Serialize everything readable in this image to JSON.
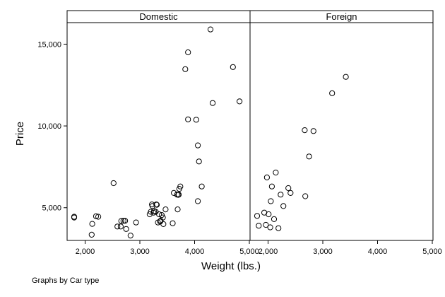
{
  "chart_data": {
    "type": "scatter",
    "ylabel": "Price",
    "xlabel": "Weight (lbs.)",
    "note": "Graphs by Car type",
    "xlim": [
      1800,
      5000
    ],
    "ylim": [
      3000,
      16200
    ],
    "xticks": [
      2000,
      3000,
      4000,
      5000
    ],
    "xtick_labels": [
      "2,000",
      "3,000",
      "4,000",
      "5,000"
    ],
    "yticks": [
      5000,
      10000,
      15000
    ],
    "ytick_labels": [
      "5,000",
      "10,000",
      "15,000"
    ],
    "grid": false,
    "marker": "hollow-circle",
    "panels": [
      {
        "name": "Domestic",
        "points": [
          [
            1800,
            4400
          ],
          [
            1800,
            4450
          ],
          [
            2120,
            3350
          ],
          [
            2130,
            4010
          ],
          [
            2200,
            4480
          ],
          [
            2240,
            4450
          ],
          [
            2520,
            6500
          ],
          [
            2590,
            3850
          ],
          [
            2650,
            3850
          ],
          [
            2660,
            4190
          ],
          [
            2700,
            4200
          ],
          [
            2730,
            4200
          ],
          [
            2750,
            3700
          ],
          [
            2830,
            3300
          ],
          [
            2930,
            4100
          ],
          [
            3180,
            4600
          ],
          [
            3200,
            4750
          ],
          [
            3220,
            5200
          ],
          [
            3230,
            5100
          ],
          [
            3250,
            4700
          ],
          [
            3260,
            4800
          ],
          [
            3290,
            4750
          ],
          [
            3300,
            5200
          ],
          [
            3310,
            5180
          ],
          [
            3330,
            4100
          ],
          [
            3350,
            4600
          ],
          [
            3370,
            4150
          ],
          [
            3380,
            4200
          ],
          [
            3400,
            4550
          ],
          [
            3420,
            4400
          ],
          [
            3430,
            4000
          ],
          [
            3470,
            4900
          ],
          [
            3600,
            4050
          ],
          [
            3620,
            5900
          ],
          [
            3680,
            5800
          ],
          [
            3690,
            4900
          ],
          [
            3700,
            5790
          ],
          [
            3710,
            5800
          ],
          [
            3720,
            6150
          ],
          [
            3740,
            6300
          ],
          [
            3830,
            13470
          ],
          [
            3880,
            14500
          ],
          [
            3880,
            10400
          ],
          [
            4030,
            10380
          ],
          [
            4060,
            8810
          ],
          [
            4060,
            5400
          ],
          [
            4080,
            7830
          ],
          [
            4130,
            6300
          ],
          [
            4290,
            15900
          ],
          [
            4330,
            11400
          ],
          [
            4700,
            13600
          ],
          [
            4820,
            11500
          ]
        ]
      },
      {
        "name": "Foreign",
        "points": [
          [
            1800,
            4500
          ],
          [
            1830,
            3900
          ],
          [
            1930,
            4700
          ],
          [
            1960,
            3950
          ],
          [
            1980,
            6850
          ],
          [
            2010,
            4600
          ],
          [
            2040,
            3800
          ],
          [
            2050,
            5400
          ],
          [
            2070,
            6300
          ],
          [
            2110,
            4300
          ],
          [
            2140,
            7150
          ],
          [
            2190,
            3750
          ],
          [
            2230,
            5800
          ],
          [
            2280,
            5100
          ],
          [
            2370,
            6200
          ],
          [
            2410,
            5900
          ],
          [
            2670,
            9740
          ],
          [
            2680,
            5700
          ],
          [
            2750,
            8130
          ],
          [
            2830,
            9690
          ],
          [
            3170,
            12000
          ],
          [
            3420,
            13000
          ]
        ]
      }
    ]
  }
}
